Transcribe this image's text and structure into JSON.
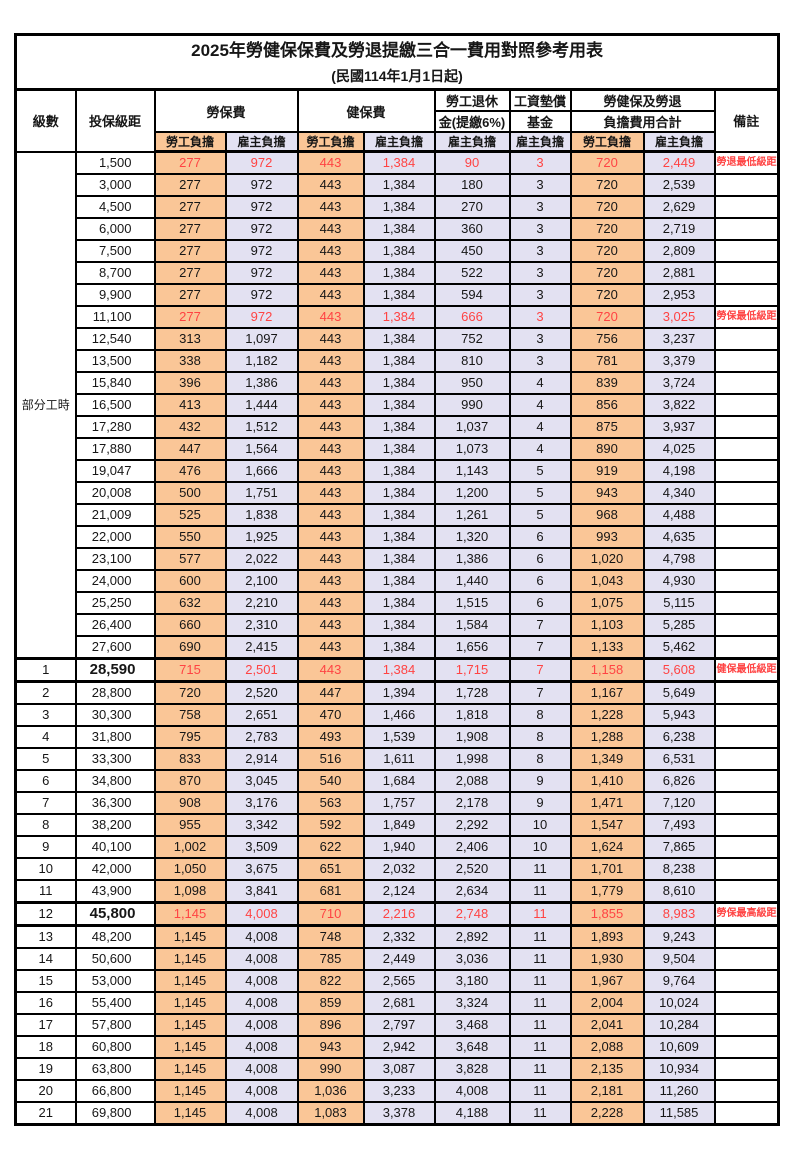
{
  "title": "2025年勞健保保費及勞退提繳三合一費用對照參考用表",
  "subtitle": "(民國114年1月1日起)",
  "header": {
    "level": "級數",
    "bracket": "投保級距",
    "labor": "勞保費",
    "health": "健保費",
    "pension_line1": "勞工退休",
    "pension_line2": "金(提繳6%)",
    "wage_line1": "工資墊償",
    "wage_line2": "基金",
    "total_line1": "勞健保及勞退",
    "total_line2": "負擔費用合計",
    "remark": "備註",
    "employee": "勞工負擔",
    "employer": "雇主負擔"
  },
  "part_time_label": "部分工時",
  "colors": {
    "employee_column_bg": "#FAC697",
    "employer_column_bg": "#E3E1F2",
    "highlight_text": "#FF4343",
    "border": "#000000"
  },
  "rows": [
    {
      "level": "",
      "bracket": "1,500",
      "values": [
        "277",
        "972",
        "443",
        "1,384",
        "90",
        "3",
        "720",
        "2,449"
      ],
      "remark": "勞退最低級距",
      "red": true
    },
    {
      "level": "",
      "bracket": "3,000",
      "values": [
        "277",
        "972",
        "443",
        "1,384",
        "180",
        "3",
        "720",
        "2,539"
      ],
      "remark": ""
    },
    {
      "level": "",
      "bracket": "4,500",
      "values": [
        "277",
        "972",
        "443",
        "1,384",
        "270",
        "3",
        "720",
        "2,629"
      ],
      "remark": ""
    },
    {
      "level": "",
      "bracket": "6,000",
      "values": [
        "277",
        "972",
        "443",
        "1,384",
        "360",
        "3",
        "720",
        "2,719"
      ],
      "remark": ""
    },
    {
      "level": "",
      "bracket": "7,500",
      "values": [
        "277",
        "972",
        "443",
        "1,384",
        "450",
        "3",
        "720",
        "2,809"
      ],
      "remark": ""
    },
    {
      "level": "",
      "bracket": "8,700",
      "values": [
        "277",
        "972",
        "443",
        "1,384",
        "522",
        "3",
        "720",
        "2,881"
      ],
      "remark": ""
    },
    {
      "level": "",
      "bracket": "9,900",
      "values": [
        "277",
        "972",
        "443",
        "1,384",
        "594",
        "3",
        "720",
        "2,953"
      ],
      "remark": ""
    },
    {
      "level": "",
      "bracket": "11,100",
      "values": [
        "277",
        "972",
        "443",
        "1,384",
        "666",
        "3",
        "720",
        "3,025"
      ],
      "remark": "勞保最低級距",
      "red": true
    },
    {
      "level": "",
      "bracket": "12,540",
      "values": [
        "313",
        "1,097",
        "443",
        "1,384",
        "752",
        "3",
        "756",
        "3,237"
      ],
      "remark": ""
    },
    {
      "level": "",
      "bracket": "13,500",
      "values": [
        "338",
        "1,182",
        "443",
        "1,384",
        "810",
        "3",
        "781",
        "3,379"
      ],
      "remark": ""
    },
    {
      "level": "",
      "bracket": "15,840",
      "values": [
        "396",
        "1,386",
        "443",
        "1,384",
        "950",
        "4",
        "839",
        "3,724"
      ],
      "remark": ""
    },
    {
      "level": "",
      "bracket": "16,500",
      "values": [
        "413",
        "1,444",
        "443",
        "1,384",
        "990",
        "4",
        "856",
        "3,822"
      ],
      "remark": ""
    },
    {
      "level": "",
      "bracket": "17,280",
      "values": [
        "432",
        "1,512",
        "443",
        "1,384",
        "1,037",
        "4",
        "875",
        "3,937"
      ],
      "remark": ""
    },
    {
      "level": "",
      "bracket": "17,880",
      "values": [
        "447",
        "1,564",
        "443",
        "1,384",
        "1,073",
        "4",
        "890",
        "4,025"
      ],
      "remark": ""
    },
    {
      "level": "",
      "bracket": "19,047",
      "values": [
        "476",
        "1,666",
        "443",
        "1,384",
        "1,143",
        "5",
        "919",
        "4,198"
      ],
      "remark": ""
    },
    {
      "level": "",
      "bracket": "20,008",
      "values": [
        "500",
        "1,751",
        "443",
        "1,384",
        "1,200",
        "5",
        "943",
        "4,340"
      ],
      "remark": ""
    },
    {
      "level": "",
      "bracket": "21,009",
      "values": [
        "525",
        "1,838",
        "443",
        "1,384",
        "1,261",
        "5",
        "968",
        "4,488"
      ],
      "remark": ""
    },
    {
      "level": "",
      "bracket": "22,000",
      "values": [
        "550",
        "1,925",
        "443",
        "1,384",
        "1,320",
        "6",
        "993",
        "4,635"
      ],
      "remark": ""
    },
    {
      "level": "",
      "bracket": "23,100",
      "values": [
        "577",
        "2,022",
        "443",
        "1,384",
        "1,386",
        "6",
        "1,020",
        "4,798"
      ],
      "remark": ""
    },
    {
      "level": "",
      "bracket": "24,000",
      "values": [
        "600",
        "2,100",
        "443",
        "1,384",
        "1,440",
        "6",
        "1,043",
        "4,930"
      ],
      "remark": ""
    },
    {
      "level": "",
      "bracket": "25,250",
      "values": [
        "632",
        "2,210",
        "443",
        "1,384",
        "1,515",
        "6",
        "1,075",
        "5,115"
      ],
      "remark": ""
    },
    {
      "level": "",
      "bracket": "26,400",
      "values": [
        "660",
        "2,310",
        "443",
        "1,384",
        "1,584",
        "7",
        "1,103",
        "5,285"
      ],
      "remark": ""
    },
    {
      "level": "",
      "bracket": "27,600",
      "values": [
        "690",
        "2,415",
        "443",
        "1,384",
        "1,656",
        "7",
        "1,133",
        "5,462"
      ],
      "remark": ""
    },
    {
      "level": "1",
      "bracket": "28,590",
      "values": [
        "715",
        "2,501",
        "443",
        "1,384",
        "1,715",
        "7",
        "1,158",
        "5,608"
      ],
      "remark": "健保最低級距",
      "red": true,
      "strong": true,
      "bold": true
    },
    {
      "level": "2",
      "bracket": "28,800",
      "values": [
        "720",
        "2,520",
        "447",
        "1,394",
        "1,728",
        "7",
        "1,167",
        "5,649"
      ],
      "remark": ""
    },
    {
      "level": "3",
      "bracket": "30,300",
      "values": [
        "758",
        "2,651",
        "470",
        "1,466",
        "1,818",
        "8",
        "1,228",
        "5,943"
      ],
      "remark": ""
    },
    {
      "level": "4",
      "bracket": "31,800",
      "values": [
        "795",
        "2,783",
        "493",
        "1,539",
        "1,908",
        "8",
        "1,288",
        "6,238"
      ],
      "remark": ""
    },
    {
      "level": "5",
      "bracket": "33,300",
      "values": [
        "833",
        "2,914",
        "516",
        "1,611",
        "1,998",
        "8",
        "1,349",
        "6,531"
      ],
      "remark": ""
    },
    {
      "level": "6",
      "bracket": "34,800",
      "values": [
        "870",
        "3,045",
        "540",
        "1,684",
        "2,088",
        "9",
        "1,410",
        "6,826"
      ],
      "remark": ""
    },
    {
      "level": "7",
      "bracket": "36,300",
      "values": [
        "908",
        "3,176",
        "563",
        "1,757",
        "2,178",
        "9",
        "1,471",
        "7,120"
      ],
      "remark": ""
    },
    {
      "level": "8",
      "bracket": "38,200",
      "values": [
        "955",
        "3,342",
        "592",
        "1,849",
        "2,292",
        "10",
        "1,547",
        "7,493"
      ],
      "remark": ""
    },
    {
      "level": "9",
      "bracket": "40,100",
      "values": [
        "1,002",
        "3,509",
        "622",
        "1,940",
        "2,406",
        "10",
        "1,624",
        "7,865"
      ],
      "remark": ""
    },
    {
      "level": "10",
      "bracket": "42,000",
      "values": [
        "1,050",
        "3,675",
        "651",
        "2,032",
        "2,520",
        "11",
        "1,701",
        "8,238"
      ],
      "remark": ""
    },
    {
      "level": "11",
      "bracket": "43,900",
      "values": [
        "1,098",
        "3,841",
        "681",
        "2,124",
        "2,634",
        "11",
        "1,779",
        "8,610"
      ],
      "remark": ""
    },
    {
      "level": "12",
      "bracket": "45,800",
      "values": [
        "1,145",
        "4,008",
        "710",
        "2,216",
        "2,748",
        "11",
        "1,855",
        "8,983"
      ],
      "remark": "勞保最高級距",
      "red": true,
      "strong": true,
      "bold": true
    },
    {
      "level": "13",
      "bracket": "48,200",
      "values": [
        "1,145",
        "4,008",
        "748",
        "2,332",
        "2,892",
        "11",
        "1,893",
        "9,243"
      ],
      "remark": ""
    },
    {
      "level": "14",
      "bracket": "50,600",
      "values": [
        "1,145",
        "4,008",
        "785",
        "2,449",
        "3,036",
        "11",
        "1,930",
        "9,504"
      ],
      "remark": ""
    },
    {
      "level": "15",
      "bracket": "53,000",
      "values": [
        "1,145",
        "4,008",
        "822",
        "2,565",
        "3,180",
        "11",
        "1,967",
        "9,764"
      ],
      "remark": ""
    },
    {
      "level": "16",
      "bracket": "55,400",
      "values": [
        "1,145",
        "4,008",
        "859",
        "2,681",
        "3,324",
        "11",
        "2,004",
        "10,024"
      ],
      "remark": ""
    },
    {
      "level": "17",
      "bracket": "57,800",
      "values": [
        "1,145",
        "4,008",
        "896",
        "2,797",
        "3,468",
        "11",
        "2,041",
        "10,284"
      ],
      "remark": ""
    },
    {
      "level": "18",
      "bracket": "60,800",
      "values": [
        "1,145",
        "4,008",
        "943",
        "2,942",
        "3,648",
        "11",
        "2,088",
        "10,609"
      ],
      "remark": ""
    },
    {
      "level": "19",
      "bracket": "63,800",
      "values": [
        "1,145",
        "4,008",
        "990",
        "3,087",
        "3,828",
        "11",
        "2,135",
        "10,934"
      ],
      "remark": ""
    },
    {
      "level": "20",
      "bracket": "66,800",
      "values": [
        "1,145",
        "4,008",
        "1,036",
        "3,233",
        "4,008",
        "11",
        "2,181",
        "11,260"
      ],
      "remark": ""
    },
    {
      "level": "21",
      "bracket": "69,800",
      "values": [
        "1,145",
        "4,008",
        "1,083",
        "3,378",
        "4,188",
        "11",
        "2,228",
        "11,585"
      ],
      "remark": ""
    }
  ]
}
